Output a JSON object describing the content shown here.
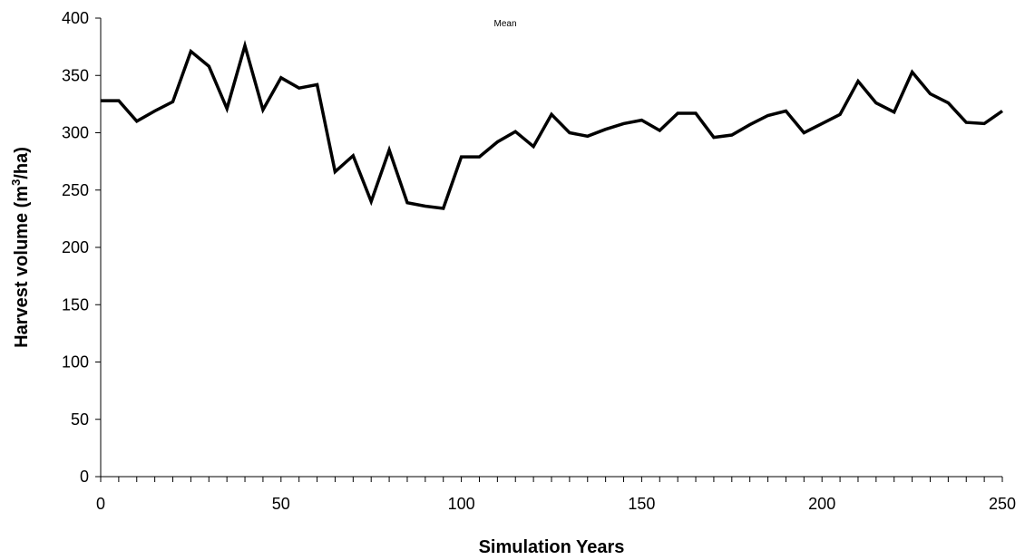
{
  "chart_data": {
    "type": "line",
    "title": "",
    "xlabel": "Simulation Years",
    "ylabel_main": "Harvest volume (m",
    "ylabel_sup": "3",
    "ylabel_end": "/ha)",
    "series_label": "Mean",
    "xlim": [
      0,
      250
    ],
    "ylim": [
      0,
      400
    ],
    "x_major_ticks": [
      0,
      50,
      100,
      150,
      200,
      250
    ],
    "x_minor_step": 5,
    "y_ticks": [
      0,
      50,
      100,
      150,
      200,
      250,
      300,
      350,
      400
    ],
    "grid": false,
    "legend": "none",
    "line_color": "#000000",
    "series": [
      {
        "x": [
          0,
          5,
          10,
          15,
          20,
          25,
          30,
          35,
          40,
          45,
          50,
          55,
          60,
          65,
          70,
          75,
          80,
          85,
          90,
          95,
          100,
          105,
          110,
          115,
          120,
          125,
          130,
          135,
          140,
          145,
          150,
          155,
          160,
          165,
          170,
          175,
          180,
          185,
          190,
          195,
          200,
          205,
          210,
          215,
          220,
          225,
          230,
          235,
          240,
          245,
          250
        ],
        "values": [
          328,
          328,
          310,
          319,
          327,
          371,
          358,
          321,
          376,
          320,
          348,
          339,
          342,
          266,
          280,
          240,
          285,
          239,
          236,
          234,
          279,
          279,
          292,
          301,
          288,
          316,
          300,
          297,
          303,
          308,
          311,
          302,
          317,
          317,
          296,
          298,
          307,
          315,
          319,
          300,
          308,
          316,
          345,
          326,
          318,
          353,
          334,
          326,
          309,
          308,
          319
        ]
      }
    ]
  }
}
